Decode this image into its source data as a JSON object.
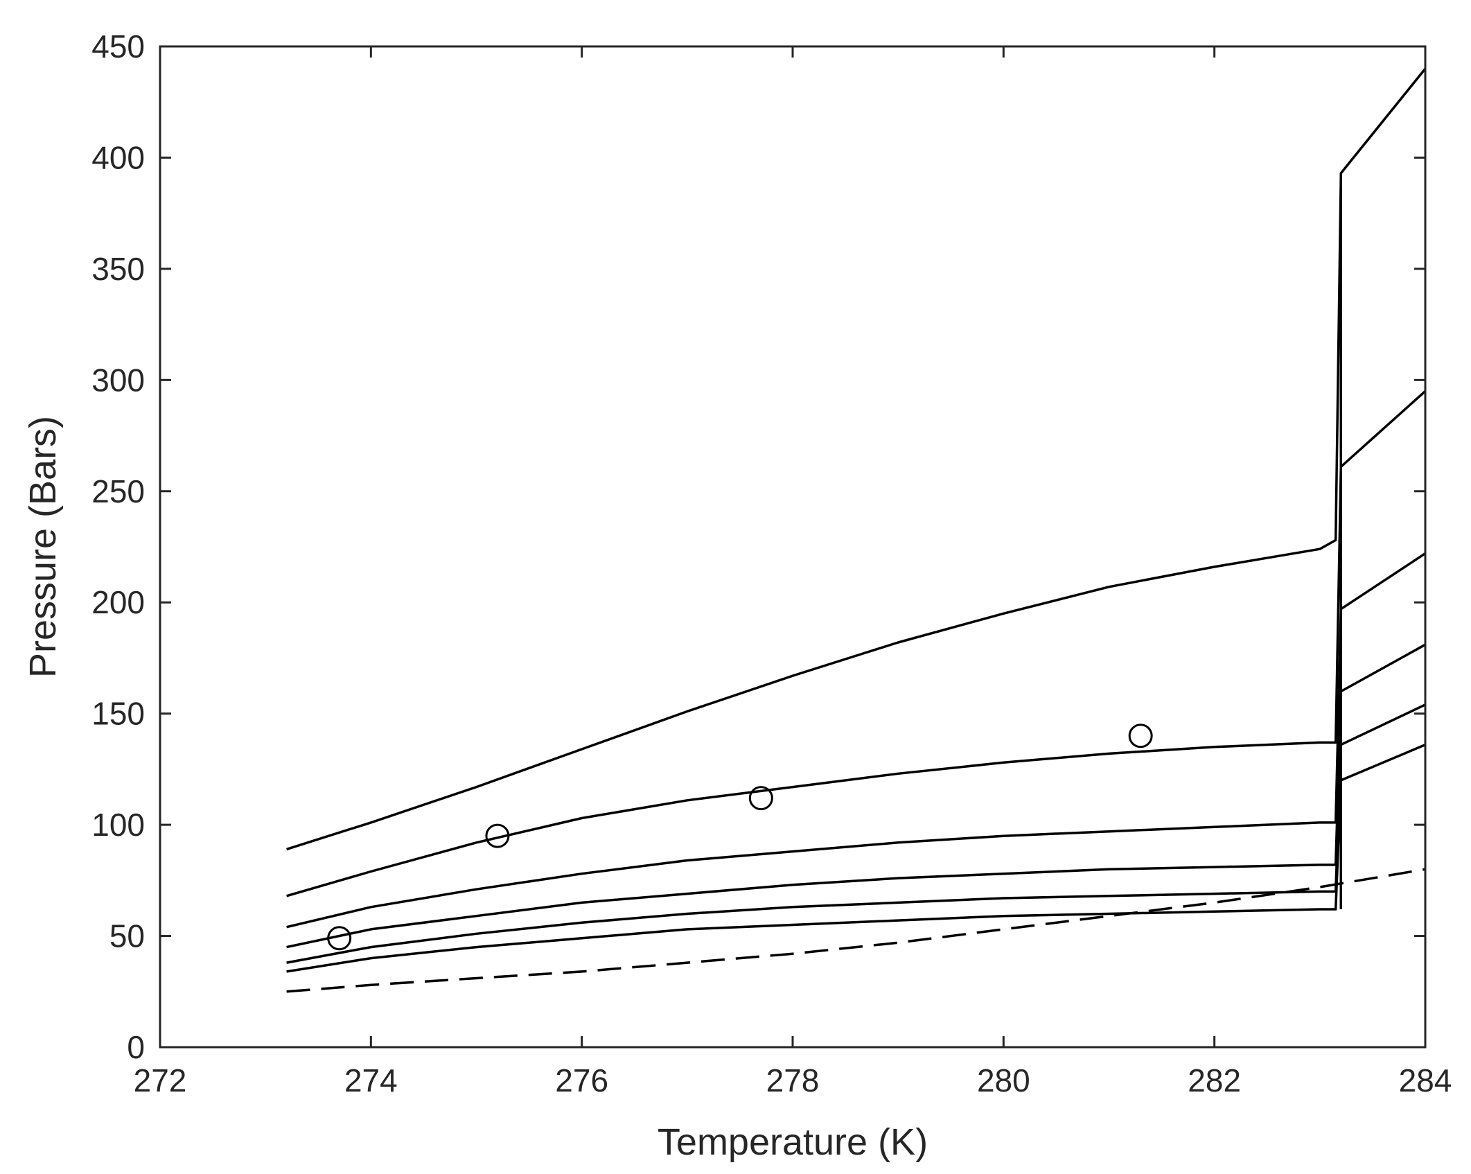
{
  "chart_data": {
    "type": "line",
    "title": "",
    "xlabel": "Temperature (K)",
    "ylabel": "Pressure (Bars)",
    "xlim": [
      272,
      284
    ],
    "ylim": [
      0,
      450
    ],
    "xticks": [
      272,
      274,
      276,
      278,
      280,
      282,
      284
    ],
    "yticks": [
      0,
      50,
      100,
      150,
      200,
      250,
      300,
      350,
      400,
      450
    ],
    "grid": false,
    "legend": null,
    "line_color": "#000000",
    "series": [
      {
        "style": "solid",
        "points": [
          [
            273.2,
            89
          ],
          [
            274,
            101
          ],
          [
            275,
            117
          ],
          [
            276,
            134
          ],
          [
            277,
            151
          ],
          [
            278,
            167
          ],
          [
            279,
            182
          ],
          [
            280,
            195
          ],
          [
            281,
            207
          ],
          [
            282,
            216
          ],
          [
            283,
            224
          ],
          [
            283.15,
            228
          ],
          [
            283.2,
            393
          ],
          [
            284,
            440
          ]
        ]
      },
      {
        "style": "solid",
        "points": [
          [
            273.2,
            68
          ],
          [
            274,
            79
          ],
          [
            275,
            92
          ],
          [
            276,
            103
          ],
          [
            277,
            111
          ],
          [
            278,
            117
          ],
          [
            279,
            123
          ],
          [
            280,
            128
          ],
          [
            281,
            132
          ],
          [
            282,
            135
          ],
          [
            283,
            137
          ],
          [
            283.15,
            137
          ],
          [
            283.2,
            261
          ],
          [
            284,
            295
          ]
        ]
      },
      {
        "style": "solid",
        "points": [
          [
            273.2,
            54
          ],
          [
            274,
            63
          ],
          [
            275,
            71
          ],
          [
            276,
            78
          ],
          [
            277,
            84
          ],
          [
            278,
            88
          ],
          [
            279,
            92
          ],
          [
            280,
            95
          ],
          [
            281,
            97
          ],
          [
            282,
            99
          ],
          [
            283,
            101
          ],
          [
            283.15,
            101
          ],
          [
            283.2,
            197
          ],
          [
            284,
            222
          ]
        ]
      },
      {
        "style": "solid",
        "points": [
          [
            273.2,
            45
          ],
          [
            274,
            53
          ],
          [
            275,
            59
          ],
          [
            276,
            65
          ],
          [
            277,
            69
          ],
          [
            278,
            73
          ],
          [
            279,
            76
          ],
          [
            280,
            78
          ],
          [
            281,
            80
          ],
          [
            282,
            81
          ],
          [
            283,
            82
          ],
          [
            283.15,
            82
          ],
          [
            283.2,
            160
          ],
          [
            284,
            181
          ]
        ]
      },
      {
        "style": "solid",
        "points": [
          [
            273.2,
            38
          ],
          [
            274,
            45
          ],
          [
            275,
            51
          ],
          [
            276,
            56
          ],
          [
            277,
            60
          ],
          [
            278,
            63
          ],
          [
            279,
            65
          ],
          [
            280,
            67
          ],
          [
            281,
            68
          ],
          [
            282,
            69
          ],
          [
            283,
            70
          ],
          [
            283.15,
            70
          ],
          [
            283.2,
            136
          ],
          [
            284,
            154
          ]
        ]
      },
      {
        "style": "solid",
        "points": [
          [
            273.2,
            34
          ],
          [
            274,
            40
          ],
          [
            275,
            45
          ],
          [
            276,
            49
          ],
          [
            277,
            53
          ],
          [
            278,
            55
          ],
          [
            279,
            57
          ],
          [
            280,
            59
          ],
          [
            281,
            60
          ],
          [
            282,
            61
          ],
          [
            283,
            62
          ],
          [
            283.15,
            62
          ],
          [
            283.2,
            120
          ],
          [
            284,
            136
          ]
        ]
      },
      {
        "style": "dashed",
        "points": [
          [
            273.2,
            25
          ],
          [
            274,
            28
          ],
          [
            275,
            31
          ],
          [
            276,
            34
          ],
          [
            277,
            38
          ],
          [
            278,
            42
          ],
          [
            279,
            47
          ],
          [
            280,
            53
          ],
          [
            281,
            59
          ],
          [
            282,
            65
          ],
          [
            283,
            72
          ],
          [
            284,
            80
          ]
        ]
      }
    ],
    "markers": {
      "shape": "circle-open",
      "points": [
        [
          273.7,
          49
        ],
        [
          275.2,
          95
        ],
        [
          277.7,
          112
        ],
        [
          281.3,
          140
        ]
      ]
    },
    "vertical_line": {
      "x": 283.2,
      "from": 62,
      "to": 393
    }
  }
}
